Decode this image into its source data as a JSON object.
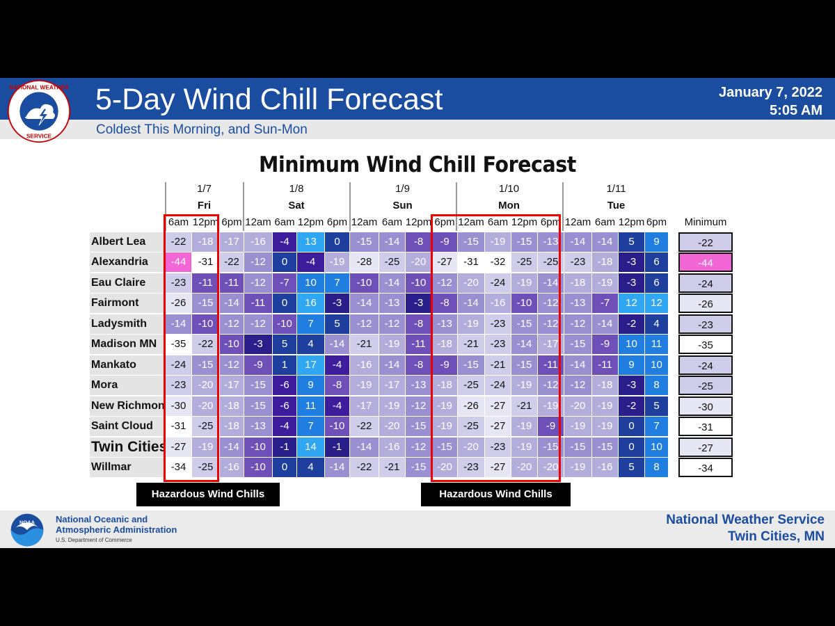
{
  "header": {
    "title": "5-Day Wind Chill Forecast",
    "subtitle": "Coldest This Morning, and Sun-Mon",
    "date": "January 7, 2022",
    "time": "5:05 AM",
    "logo": "nws-logo",
    "logo_text": "NATIONAL WEATHER SERVICE"
  },
  "table": {
    "title": "Minimum Wind Chill Forecast",
    "days": [
      {
        "date": "1/7",
        "day": "Fri"
      },
      {
        "date": "1/8",
        "day": "Sat"
      },
      {
        "date": "1/9",
        "day": "Sun"
      },
      {
        "date": "1/10",
        "day": "Mon"
      },
      {
        "date": "1/11",
        "day": "Tue"
      }
    ],
    "columns": [
      "6am",
      "12pm",
      "6pm",
      "12am",
      "6am",
      "12pm",
      "6pm",
      "12am",
      "6am",
      "12pm",
      "6pm",
      "12am",
      "6am",
      "12pm",
      "6pm",
      "12am",
      "6am",
      "12pm",
      "6pm"
    ],
    "minimum_header": "Minimum",
    "rows": [
      {
        "name": "Albert Lea",
        "values": [
          "-22",
          "-18",
          "-17",
          "-16",
          "-4",
          "13",
          "0",
          "-15",
          "-14",
          "-8",
          "-9",
          "-15",
          "-19",
          "-15",
          "-13",
          "-14",
          "-14",
          "5",
          "9"
        ],
        "min": "-22"
      },
      {
        "name": "Alexandria",
        "values": [
          "-44",
          "-31",
          "-22",
          "-12",
          "0",
          "-4",
          "-19",
          "-28",
          "-25",
          "-20",
          "-27",
          "-31",
          "-32",
          "-25",
          "-25",
          "-23",
          "-18",
          "-3",
          "6"
        ],
        "min": "-44"
      },
      {
        "name": "Eau Claire",
        "values": [
          "-23",
          "-11",
          "-11",
          "-12",
          "-7",
          "10",
          "7",
          "-10",
          "-14",
          "-10",
          "-12",
          "-20",
          "-24",
          "-19",
          "-14",
          "-18",
          "-19",
          "-3",
          "6"
        ],
        "min": "-24"
      },
      {
        "name": "Fairmont",
        "values": [
          "-26",
          "-15",
          "-14",
          "-11",
          "0",
          "16",
          "-3",
          "-14",
          "-13",
          "-3",
          "-8",
          "-14",
          "-16",
          "-10",
          "-12",
          "-13",
          "-7",
          "12",
          "12"
        ],
        "min": "-26"
      },
      {
        "name": "Ladysmith",
        "values": [
          "-14",
          "-10",
          "-12",
          "-12",
          "-10",
          "7",
          "5",
          "-12",
          "-12",
          "-8",
          "-13",
          "-19",
          "-23",
          "-15",
          "-12",
          "-12",
          "-14",
          "-2",
          "4"
        ],
        "min": "-23"
      },
      {
        "name": "Madison MN",
        "values": [
          "-35",
          "-22",
          "-10",
          "-3",
          "5",
          "4",
          "-14",
          "-21",
          "-19",
          "-11",
          "-18",
          "-21",
          "-23",
          "-14",
          "-17",
          "-15",
          "-9",
          "10",
          "11"
        ],
        "min": "-35"
      },
      {
        "name": "Mankato",
        "values": [
          "-24",
          "-15",
          "-12",
          "-9",
          "1",
          "17",
          "-4",
          "-16",
          "-14",
          "-8",
          "-9",
          "-15",
          "-21",
          "-15",
          "-11",
          "-14",
          "-11",
          "9",
          "10"
        ],
        "min": "-24"
      },
      {
        "name": "Mora",
        "values": [
          "-23",
          "-20",
          "-17",
          "-15",
          "-6",
          "9",
          "-8",
          "-19",
          "-17",
          "-13",
          "-18",
          "-25",
          "-24",
          "-19",
          "-12",
          "-12",
          "-18",
          "-3",
          "8"
        ],
        "min": "-25"
      },
      {
        "name": "New Richmond",
        "values": [
          "-30",
          "-20",
          "-18",
          "-15",
          "-6",
          "11",
          "-4",
          "-17",
          "-19",
          "-12",
          "-19",
          "-26",
          "-27",
          "-21",
          "-19",
          "-20",
          "-19",
          "-2",
          "5"
        ],
        "min": "-30"
      },
      {
        "name": "Saint Cloud",
        "values": [
          "-31",
          "-25",
          "-18",
          "-13",
          "-4",
          "7",
          "-10",
          "-22",
          "-20",
          "-15",
          "-19",
          "-25",
          "-27",
          "-19",
          "-9",
          "-19",
          "-19",
          "0",
          "7"
        ],
        "min": "-31"
      },
      {
        "name": "Twin Cities",
        "values": [
          "-27",
          "-19",
          "-14",
          "-10",
          "-1",
          "14",
          "-1",
          "-14",
          "-16",
          "-12",
          "-15",
          "-20",
          "-23",
          "-19",
          "-15",
          "-15",
          "-15",
          "0",
          "10"
        ],
        "min": "-27"
      },
      {
        "name": "Willmar",
        "values": [
          "-34",
          "-25",
          "-16",
          "-10",
          "0",
          "4",
          "-14",
          "-22",
          "-21",
          "-15",
          "-20",
          "-23",
          "-27",
          "-20",
          "-20",
          "-19",
          "-16",
          "5",
          "8"
        ],
        "min": "-34"
      }
    ]
  },
  "annotations": {
    "hazard_left": "Hazardous Wind Chills",
    "hazard_right": "Hazardous Wind Chills"
  },
  "footer": {
    "noaa_line1": "National Oceanic and",
    "noaa_line2": "Atmospheric Administration",
    "noaa_dept": "U.S. Department of Commerce",
    "nws_line1": "National Weather Service",
    "nws_line2": "Twin Cities, MN",
    "logo": "noaa-logo"
  },
  "colors": {
    "banner": "#1a4da0",
    "hazard_box": "#e00000",
    "extreme_cold": "#f266d6"
  }
}
